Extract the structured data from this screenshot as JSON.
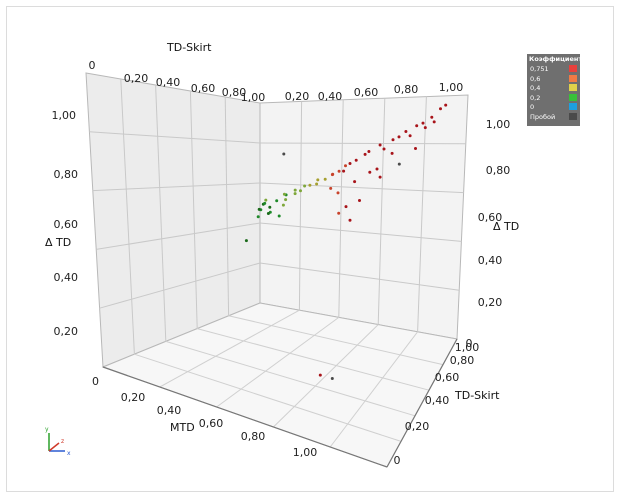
{
  "chart_data": {
    "type": "scatter",
    "title": "",
    "axes": {
      "x_back": {
        "label": "TD-Skirt",
        "ticks": [
          "0",
          "0,20",
          "0,40",
          "0,60",
          "0,80",
          "1,00"
        ]
      },
      "x_mid": {
        "ticks": [
          "0,20",
          "0,40",
          "0,60",
          "0,80",
          "1,00"
        ]
      },
      "z_right": {
        "label": "Δ TD",
        "ticks": [
          "1,00",
          "0,80",
          "0,60",
          "0,40",
          "0,20",
          "0"
        ]
      },
      "y_left": {
        "label": "Δ TD",
        "ticks": [
          "1,00",
          "0,80",
          "0,60",
          "0,40",
          "0,20",
          "0"
        ]
      },
      "x_front": {
        "label": "MTD",
        "ticks": [
          "0,20",
          "0,40",
          "0,60",
          "0,80",
          "1,00"
        ]
      },
      "y_front": {
        "label": "TD-Skirt",
        "ticks": [
          "1,00",
          "0,80",
          "0,60",
          "0,40",
          "0,20",
          "0"
        ]
      }
    },
    "legend": {
      "title": "Коэффициент R",
      "items": [
        {
          "label": "0,751",
          "color": "#e8403c"
        },
        {
          "label": "0,6",
          "color": "#f07a45"
        },
        {
          "label": "0,4",
          "color": "#e0d24a"
        },
        {
          "label": "0,2",
          "color": "#39c039"
        },
        {
          "label": "0",
          "color": "#1e9fe0"
        },
        {
          "label": "Пробой",
          "color": "#4a4a4a"
        }
      ]
    },
    "points": [
      {
        "mtd": 0.02,
        "skirt": 0.98,
        "dtd": 0.47,
        "r": 0.15
      },
      {
        "mtd": 0.04,
        "skirt": 0.97,
        "dtd": 0.5,
        "r": 0.12
      },
      {
        "mtd": 0.06,
        "skirt": 0.99,
        "dtd": 0.46,
        "r": 0.18
      },
      {
        "mtd": 0.08,
        "skirt": 0.96,
        "dtd": 0.49,
        "r": 0.14
      },
      {
        "mtd": 0.03,
        "skirt": 0.95,
        "dtd": 0.44,
        "r": 0.2
      },
      {
        "mtd": 0.1,
        "skirt": 0.98,
        "dtd": 0.52,
        "r": 0.16
      },
      {
        "mtd": 0.05,
        "skirt": 0.93,
        "dtd": 0.48,
        "r": 0.1
      },
      {
        "mtd": 0.12,
        "skirt": 0.97,
        "dtd": 0.45,
        "r": 0.22
      },
      {
        "mtd": 0.07,
        "skirt": 0.94,
        "dtd": 0.51,
        "r": 0.25
      },
      {
        "mtd": 0.09,
        "skirt": 0.92,
        "dtd": 0.53,
        "r": 0.3
      },
      {
        "mtd": 0.14,
        "skirt": 0.99,
        "dtd": 0.55,
        "r": 0.28
      },
      {
        "mtd": 0.11,
        "skirt": 0.91,
        "dtd": 0.47,
        "r": 0.13
      },
      {
        "mtd": 0.01,
        "skirt": 0.9,
        "dtd": 0.33,
        "r": 0.05
      },
      {
        "mtd": 0.16,
        "skirt": 0.95,
        "dtd": 0.56,
        "r": 0.35
      },
      {
        "mtd": 0.2,
        "skirt": 0.97,
        "dtd": 0.58,
        "r": 0.4
      },
      {
        "mtd": 0.24,
        "skirt": 0.98,
        "dtd": 0.6,
        "r": 0.42
      },
      {
        "mtd": 0.18,
        "skirt": 0.93,
        "dtd": 0.54,
        "r": 0.33
      },
      {
        "mtd": 0.22,
        "skirt": 0.94,
        "dtd": 0.57,
        "r": 0.38
      },
      {
        "mtd": 0.28,
        "skirt": 0.96,
        "dtd": 0.61,
        "r": 0.45
      },
      {
        "mtd": 0.3,
        "skirt": 0.99,
        "dtd": 0.63,
        "r": 0.48
      },
      {
        "mtd": 0.26,
        "skirt": 0.92,
        "dtd": 0.59,
        "r": 0.44
      },
      {
        "mtd": 0.32,
        "skirt": 0.95,
        "dtd": 0.62,
        "r": 0.5
      },
      {
        "mtd": 0.19,
        "skirt": 0.9,
        "dtd": 0.52,
        "r": 0.36
      },
      {
        "mtd": 0.35,
        "skirt": 0.97,
        "dtd": 0.64,
        "r": 0.55
      },
      {
        "mtd": 0.15,
        "skirt": 0.96,
        "dtd": 0.75,
        "r": 0.0,
        "breakdown": true
      },
      {
        "mtd": 0.38,
        "skirt": 0.98,
        "dtd": 0.66,
        "r": 0.6
      },
      {
        "mtd": 0.4,
        "skirt": 0.95,
        "dtd": 0.67,
        "r": 0.62
      },
      {
        "mtd": 0.42,
        "skirt": 0.97,
        "dtd": 0.68,
        "r": 0.65
      },
      {
        "mtd": 0.44,
        "skirt": 0.99,
        "dtd": 0.7,
        "r": 0.68
      },
      {
        "mtd": 0.46,
        "skirt": 0.94,
        "dtd": 0.69,
        "r": 0.7
      },
      {
        "mtd": 0.48,
        "skirt": 0.96,
        "dtd": 0.72,
        "r": 0.74
      },
      {
        "mtd": 0.5,
        "skirt": 0.98,
        "dtd": 0.73,
        "r": 0.75
      },
      {
        "mtd": 0.45,
        "skirt": 0.91,
        "dtd": 0.6,
        "r": 0.66
      },
      {
        "mtd": 0.52,
        "skirt": 0.93,
        "dtd": 0.65,
        "r": 0.72
      },
      {
        "mtd": 0.55,
        "skirt": 0.97,
        "dtd": 0.76,
        "r": 0.75
      },
      {
        "mtd": 0.58,
        "skirt": 0.95,
        "dtd": 0.78,
        "r": 0.75
      },
      {
        "mtd": 0.62,
        "skirt": 0.98,
        "dtd": 0.8,
        "r": 0.75
      },
      {
        "mtd": 0.65,
        "skirt": 0.96,
        "dtd": 0.79,
        "r": 0.75
      },
      {
        "mtd": 0.68,
        "skirt": 0.99,
        "dtd": 0.82,
        "r": 0.75
      },
      {
        "mtd": 0.72,
        "skirt": 0.97,
        "dtd": 0.84,
        "r": 0.75
      },
      {
        "mtd": 0.75,
        "skirt": 0.98,
        "dtd": 0.86,
        "r": 0.75
      },
      {
        "mtd": 0.78,
        "skirt": 0.96,
        "dtd": 0.85,
        "r": 0.75
      },
      {
        "mtd": 0.8,
        "skirt": 0.99,
        "dtd": 0.88,
        "r": 0.75
      },
      {
        "mtd": 0.84,
        "skirt": 0.97,
        "dtd": 0.9,
        "r": 0.75
      },
      {
        "mtd": 0.88,
        "skirt": 0.98,
        "dtd": 0.92,
        "r": 0.75
      },
      {
        "mtd": 0.92,
        "skirt": 0.99,
        "dtd": 0.95,
        "r": 0.75
      },
      {
        "mtd": 0.95,
        "skirt": 0.98,
        "dtd": 0.97,
        "r": 0.75
      },
      {
        "mtd": 0.7,
        "skirt": 0.94,
        "dtd": 0.78,
        "r": 0.75
      },
      {
        "mtd": 0.6,
        "skirt": 0.92,
        "dtd": 0.7,
        "r": 0.75
      },
      {
        "mtd": 0.74,
        "skirt": 0.93,
        "dtd": 0.74,
        "r": 0.75,
        "breakdown": true
      },
      {
        "mtd": 0.56,
        "skirt": 0.9,
        "dtd": 0.58,
        "r": 0.72
      },
      {
        "mtd": 0.5,
        "skirt": 0.89,
        "dtd": 0.55,
        "r": 0.7
      },
      {
        "mtd": 0.47,
        "skirt": 0.88,
        "dtd": 0.52,
        "r": 0.68
      },
      {
        "mtd": 0.53,
        "skirt": 0.87,
        "dtd": 0.5,
        "r": 0.74
      },
      {
        "mtd": 0.42,
        "skirt": 0.9,
        "dtd": 0.62,
        "r": 0.64
      },
      {
        "mtd": 0.86,
        "skirt": 0.95,
        "dtd": 0.89,
        "r": 0.75
      },
      {
        "mtd": 0.9,
        "skirt": 0.96,
        "dtd": 0.91,
        "r": 0.75
      },
      {
        "mtd": 0.82,
        "skirt": 0.93,
        "dtd": 0.81,
        "r": 0.75
      },
      {
        "mtd": 0.64,
        "skirt": 0.91,
        "dtd": 0.72,
        "r": 0.75
      },
      {
        "mtd": 0.66,
        "skirt": 0.9,
        "dtd": 0.69,
        "r": 0.75
      },
      {
        "mtd": 0.62,
        "skirt": 0.4,
        "dtd": 0.05,
        "r": 0.7
      },
      {
        "mtd": 0.66,
        "skirt": 0.42,
        "dtd": 0.04,
        "r": 0.4,
        "breakdown": true
      }
    ]
  },
  "orientation_icon": {
    "x_label": "x",
    "y_label": "y",
    "z_label": "z"
  }
}
